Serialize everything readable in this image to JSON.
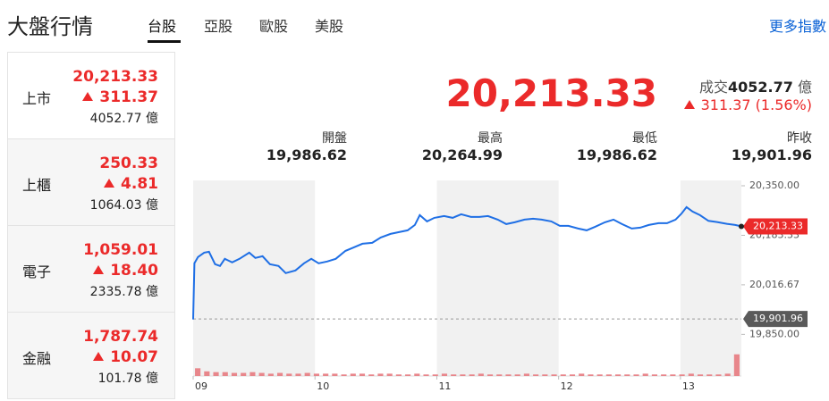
{
  "header": {
    "title": "大盤行情",
    "tabs": [
      "台股",
      "亞股",
      "歐股",
      "美股"
    ],
    "more_link": "更多指數"
  },
  "markets": [
    {
      "name": "上市",
      "value": "20,213.33",
      "change": "311.37",
      "volume": "4052.77 億"
    },
    {
      "name": "上櫃",
      "value": "250.33",
      "change": "4.81",
      "volume": "1064.03 億"
    },
    {
      "name": "電子",
      "value": "1,059.01",
      "change": "18.40",
      "volume": "2335.78 億"
    },
    {
      "name": "金融",
      "value": "1,787.74",
      "change": "10.07",
      "volume": "101.78 億"
    }
  ],
  "summary": {
    "price": "20,213.33",
    "volume_label": "成交",
    "volume": "4052.77",
    "volume_unit": "億",
    "change": "311.37 (1.56%)"
  },
  "stats": [
    {
      "label": "開盤",
      "value": "19,986.62"
    },
    {
      "label": "最高",
      "value": "20,264.99"
    },
    {
      "label": "最低",
      "value": "19,986.62"
    },
    {
      "label": "昨收",
      "value": "19,901.96"
    }
  ],
  "chart_data": {
    "type": "line",
    "color": "#1f6fe5",
    "x": [
      9.0,
      9.01,
      9.04,
      9.09,
      9.13,
      9.18,
      9.22,
      9.26,
      9.32,
      9.38,
      9.46,
      9.51,
      9.57,
      9.63,
      9.7,
      9.76,
      9.84,
      9.91,
      9.97,
      10.03,
      10.1,
      10.17,
      10.25,
      10.32,
      10.39,
      10.47,
      10.54,
      10.62,
      10.69,
      10.76,
      10.82,
      10.86,
      10.92,
      10.98,
      11.06,
      11.13,
      11.2,
      11.28,
      11.35,
      11.42,
      11.5,
      11.57,
      11.64,
      11.72,
      11.79,
      11.86,
      11.94,
      12.01,
      12.08,
      12.16,
      12.23,
      12.3,
      12.38,
      12.45,
      12.52,
      12.6,
      12.67,
      12.74,
      12.82,
      12.89,
      12.96,
      13.01,
      13.05,
      13.1,
      13.16,
      13.23,
      13.3,
      13.38,
      13.45,
      13.5
    ],
    "values": [
      19900,
      20089,
      20110,
      20125,
      20128,
      20086,
      20080,
      20104,
      20092,
      20104,
      20125,
      20107,
      20113,
      20086,
      20080,
      20056,
      20065,
      20089,
      20104,
      20089,
      20095,
      20104,
      20131,
      20143,
      20155,
      20158,
      20176,
      20188,
      20194,
      20200,
      20218,
      20251,
      20230,
      20242,
      20248,
      20242,
      20254,
      20245,
      20245,
      20248,
      20236,
      20221,
      20227,
      20236,
      20239,
      20236,
      20230,
      20215,
      20215,
      20206,
      20200,
      20212,
      20227,
      20236,
      20221,
      20206,
      20209,
      20218,
      20224,
      20224,
      20236,
      20257,
      20278,
      20263,
      20251,
      20232,
      20228,
      20222,
      20218,
      20213.33
    ],
    "xlim": [
      9,
      13.5
    ],
    "xticks": [
      {
        "value": 9,
        "label": "09"
      },
      10,
      11,
      12,
      13
    ],
    "ylim": [
      19800,
      20368
    ],
    "yticks": [
      {
        "value": 20350,
        "label": "20,350.00"
      },
      {
        "value": 20183.33,
        "label": "20,183.33"
      },
      {
        "value": 20016.67,
        "label": "20,016.67"
      },
      {
        "value": 19850,
        "label": "19,850.00"
      }
    ],
    "reference": {
      "value": 19901.96,
      "label": "19,901.96"
    },
    "last": {
      "value": 20213.33,
      "label": "20,213.33"
    },
    "volume": {
      "color": "#e8868b",
      "ylim": [
        0,
        30
      ],
      "values": [
        10,
        6,
        5,
        5,
        4,
        4,
        5,
        4,
        3,
        4,
        3,
        3,
        4,
        3,
        3,
        3,
        2,
        3,
        3,
        2,
        3,
        3,
        2,
        2,
        3,
        2,
        2,
        3,
        2,
        2,
        2,
        3,
        2,
        2,
        2,
        2,
        3,
        2,
        2,
        2,
        2,
        2,
        3,
        2,
        2,
        2,
        2,
        2,
        2,
        3,
        2,
        2,
        2,
        2,
        3,
        2,
        2,
        2,
        3,
        28
      ]
    }
  }
}
